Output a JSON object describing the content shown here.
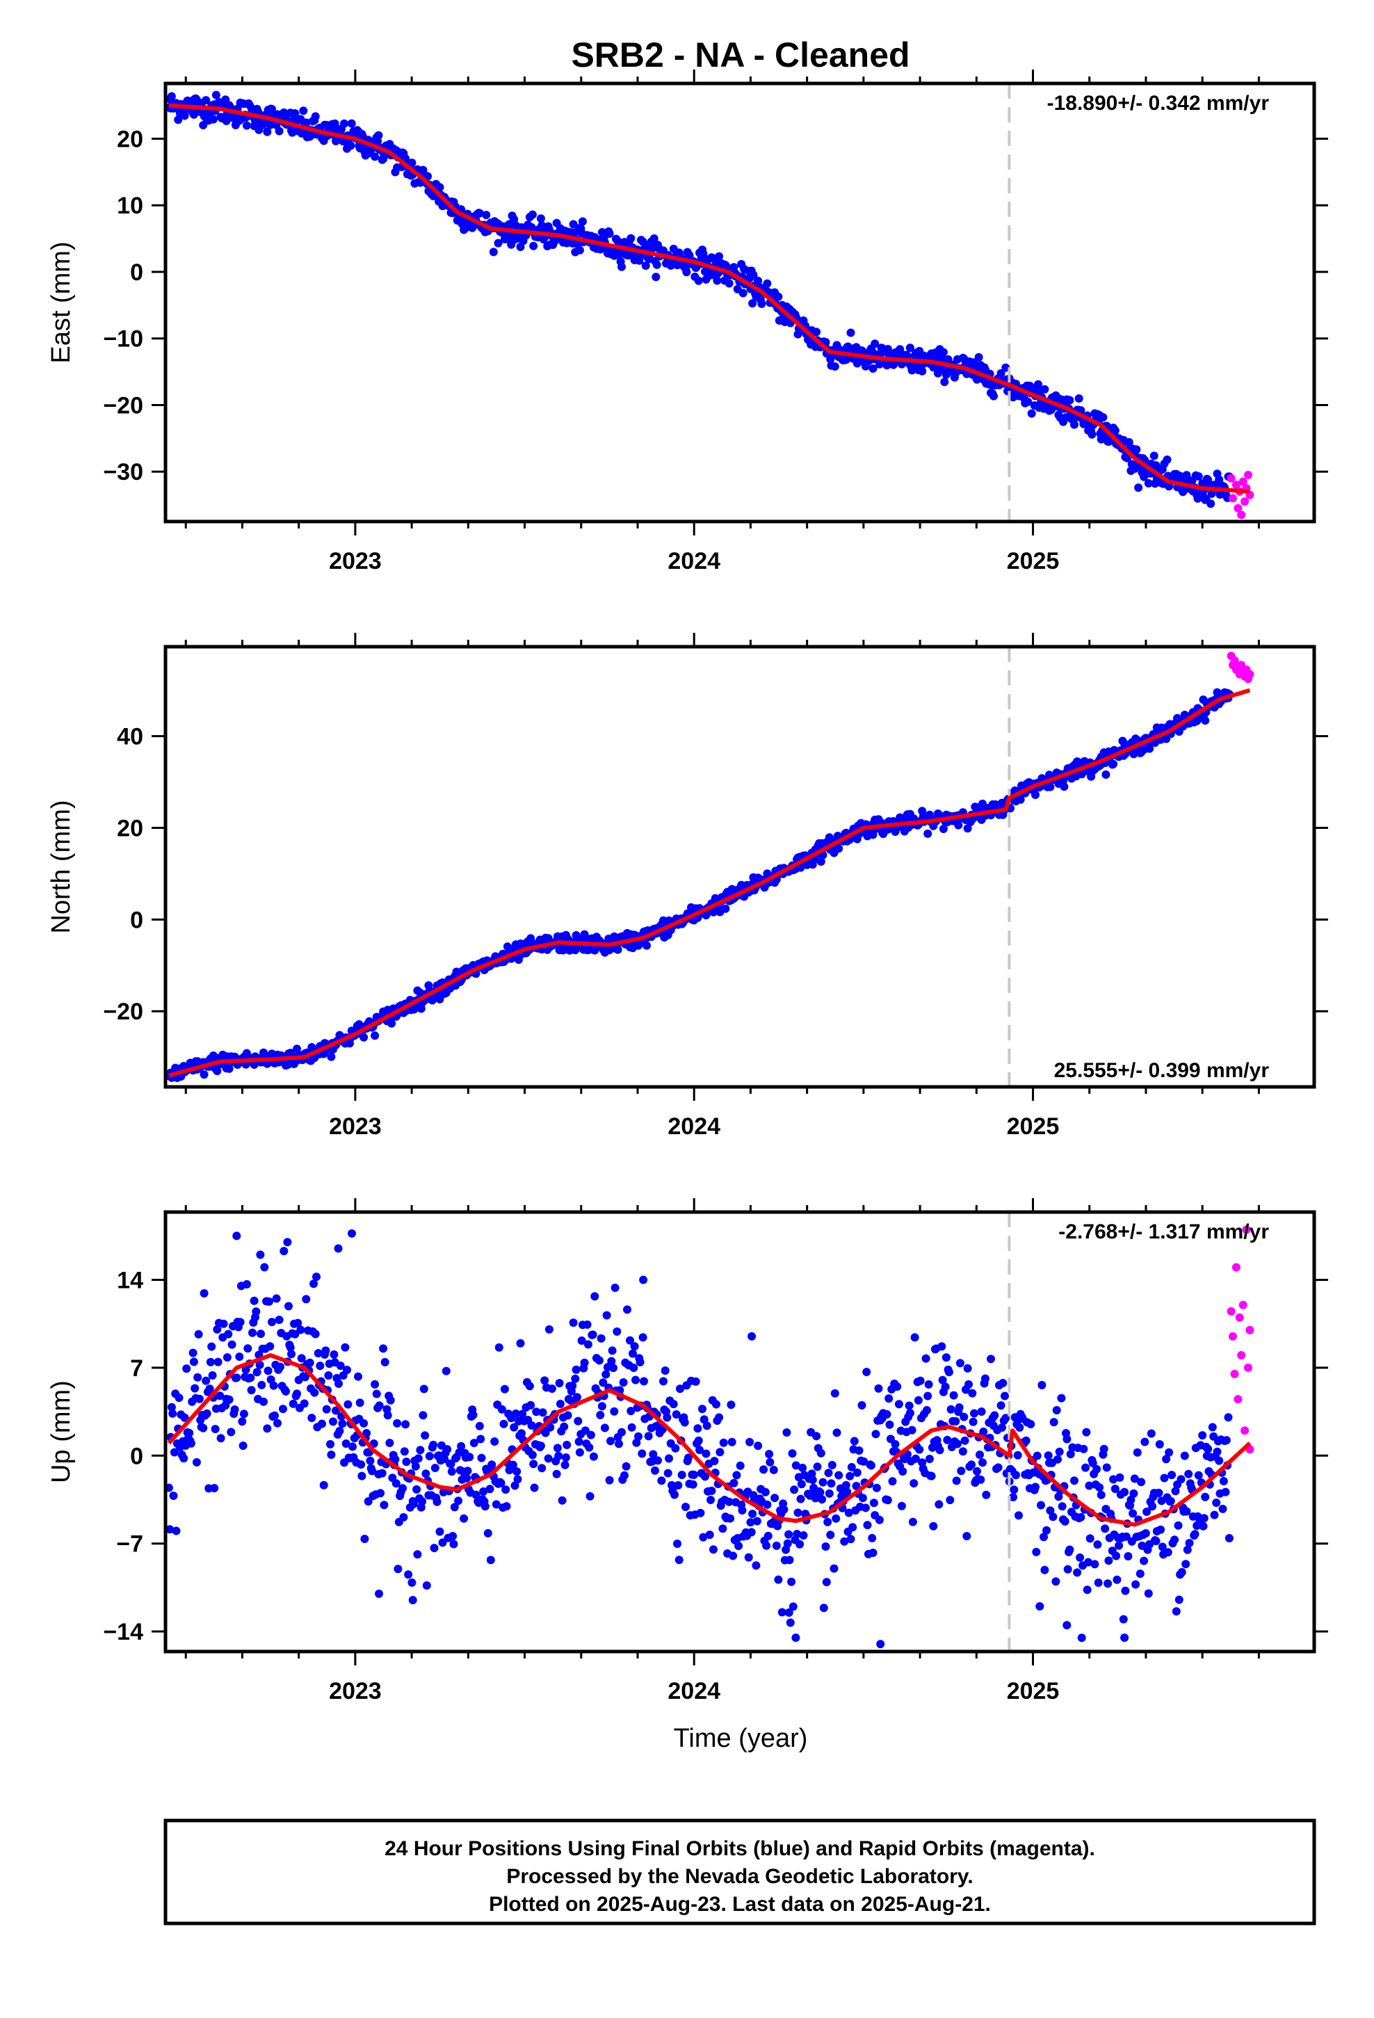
{
  "chart_data": {
    "type": "scatter",
    "title": "SRB2  - NA - Cleaned",
    "colors": {
      "final_orbits": "#0000ff",
      "rapid_orbits": "#ff00ff",
      "model_fit": "#ff0000",
      "event_line": "#c8c8c8"
    },
    "xlim": [
      2022.44,
      2025.83
    ],
    "x_ticks": [
      2023,
      2024,
      2025
    ],
    "x_tick_labels": [
      "2023",
      "2024",
      "2025"
    ],
    "xlabel": "Time (year)",
    "event_marker_x": 2024.93,
    "last_final_x": 2025.58,
    "last_data_x": 2025.64,
    "grid": false,
    "panels": [
      {
        "id": "east",
        "ylabel": "East (mm)",
        "ylim": [
          -37.5,
          28.3
        ],
        "y_ticks": [
          20,
          10,
          0,
          -10,
          -20,
          -30
        ],
        "y_tick_labels": [
          "20",
          "10",
          "0",
          "−10",
          "−20",
          "−30"
        ],
        "rate_label": "-18.890+/- 0.342 mm/yr",
        "rate_position": "top-right",
        "noise_sd": 1.0,
        "rapid_spread": 2.0,
        "fit_curve": {
          "x": [
            2022.45,
            2022.6,
            2022.75,
            2022.9,
            2023.0,
            2023.1,
            2023.2,
            2023.3,
            2023.4,
            2023.5,
            2023.6,
            2023.75,
            2023.9,
            2024.0,
            2024.1,
            2024.2,
            2024.3,
            2024.4,
            2024.55,
            2024.7,
            2024.8,
            2024.93,
            2025.0,
            2025.1,
            2025.2,
            2025.3,
            2025.4,
            2025.5,
            2025.64
          ],
          "y": [
            25.0,
            24.5,
            23.0,
            21.0,
            20.0,
            18.0,
            14.0,
            9.0,
            6.5,
            6.0,
            5.5,
            4.0,
            2.5,
            1.5,
            0.0,
            -3.0,
            -7.5,
            -12.0,
            -13.0,
            -13.5,
            -14.5,
            -17.0,
            -18.5,
            -20.5,
            -23.0,
            -28.0,
            -31.5,
            -32.5,
            -33.0
          ]
        },
        "rapid_points": {
          "x": [
            2025.585,
            2025.59,
            2025.6,
            2025.605,
            2025.61,
            2025.615,
            2025.62,
            2025.625,
            2025.63,
            2025.635,
            2025.64
          ],
          "y": [
            -31.0,
            -34.0,
            -32.0,
            -35.5,
            -33.0,
            -36.5,
            -31.5,
            -34.5,
            -32.5,
            -30.5,
            -33.5
          ]
        }
      },
      {
        "id": "north",
        "ylabel": "North (mm)",
        "ylim": [
          -36.5,
          59.5
        ],
        "y_ticks": [
          40,
          20,
          0,
          -20
        ],
        "y_tick_labels": [
          "40",
          "20",
          "0",
          "−20"
        ],
        "rate_label": "25.555+/- 0.399 mm/yr",
        "rate_position": "bottom-right",
        "noise_sd": 0.9,
        "rapid_spread": 2.0,
        "fit_curve": {
          "x": [
            2022.45,
            2022.6,
            2022.75,
            2022.85,
            2023.0,
            2023.2,
            2023.35,
            2023.5,
            2023.6,
            2023.75,
            2023.85,
            2024.0,
            2024.2,
            2024.35,
            2024.5,
            2024.7,
            2024.92,
            2024.93,
            2025.0,
            2025.2,
            2025.4,
            2025.55,
            2025.64
          ],
          "y": [
            -34.0,
            -31.0,
            -30.5,
            -30.0,
            -25.0,
            -17.0,
            -11.0,
            -6.5,
            -5.0,
            -5.5,
            -4.0,
            1.0,
            8.0,
            14.0,
            20.0,
            21.5,
            24.0,
            26.5,
            29.0,
            34.5,
            41.0,
            48.0,
            50.0
          ]
        },
        "rapid_points": {
          "x": [
            2025.585,
            2025.59,
            2025.595,
            2025.6,
            2025.605,
            2025.61,
            2025.615,
            2025.62,
            2025.625,
            2025.63,
            2025.635,
            2025.64
          ],
          "y": [
            57.5,
            55.5,
            56.5,
            54.5,
            55.0,
            53.5,
            55.5,
            54.0,
            53.0,
            54.5,
            52.5,
            53.5
          ]
        }
      },
      {
        "id": "up",
        "ylabel": "Up (mm)",
        "ylim": [
          -15.6,
          19.4
        ],
        "y_ticks": [
          14,
          7,
          0,
          -7,
          -14
        ],
        "y_tick_labels": [
          "14",
          "7",
          "0",
          "−7",
          "−14"
        ],
        "rate_label": "-2.768+/- 1.317 mm/yr",
        "rate_position": "top-right",
        "noise_sd": 3.2,
        "rapid_spread": 1.5,
        "fit_curve": {
          "x": [
            2022.45,
            2022.55,
            2022.65,
            2022.75,
            2022.85,
            2022.95,
            2023.05,
            2023.15,
            2023.25,
            2023.3,
            2023.4,
            2023.5,
            2023.6,
            2023.75,
            2023.85,
            2023.95,
            2024.05,
            2024.15,
            2024.25,
            2024.3,
            2024.4,
            2024.5,
            2024.6,
            2024.7,
            2024.75,
            2024.85,
            2024.93,
            2024.94,
            2025.0,
            2025.1,
            2025.2,
            2025.3,
            2025.4,
            2025.5,
            2025.64
          ],
          "y": [
            1.0,
            4.0,
            7.0,
            8.0,
            7.0,
            4.0,
            0.5,
            -1.5,
            -2.5,
            -2.7,
            -1.5,
            1.0,
            3.5,
            5.2,
            4.0,
            1.5,
            -1.5,
            -3.5,
            -5.0,
            -5.2,
            -4.5,
            -2.5,
            0.0,
            2.0,
            2.3,
            1.5,
            0.0,
            2.0,
            -0.5,
            -3.0,
            -5.0,
            -5.5,
            -4.5,
            -2.5,
            1.0
          ]
        },
        "outliers": {
          "x": [
            2022.65,
            2022.72,
            2022.8,
            2022.95,
            2022.99,
            2023.07,
            2023.17,
            2023.85,
            2024.17,
            2024.28,
            2024.3,
            2024.55,
            2025.02,
            2025.1,
            2025.27
          ],
          "y": [
            17.5,
            16.0,
            17.0,
            16.5,
            17.7,
            -11.0,
            -11.5,
            14.0,
            9.5,
            -12.5,
            -14.5,
            -15.0,
            -12.0,
            -13.5,
            -14.5
          ]
        },
        "rapid_points": {
          "x": [
            2025.585,
            2025.59,
            2025.595,
            2025.6,
            2025.605,
            2025.61,
            2025.615,
            2025.62,
            2025.625,
            2025.63,
            2025.635,
            2025.64,
            2025.64
          ],
          "y": [
            11.5,
            9.5,
            6.5,
            15.0,
            4.5,
            11.0,
            8.0,
            12.0,
            2.0,
            18.0,
            7.0,
            10.0,
            0.5
          ]
        }
      }
    ]
  },
  "caption": {
    "lines": [
      "24 Hour Positions Using Final Orbits (blue) and Rapid Orbits (magenta).",
      "Processed by the Nevada Geodetic Laboratory.",
      "Plotted on 2025-Aug-23. Last data on 2025-Aug-21."
    ]
  }
}
